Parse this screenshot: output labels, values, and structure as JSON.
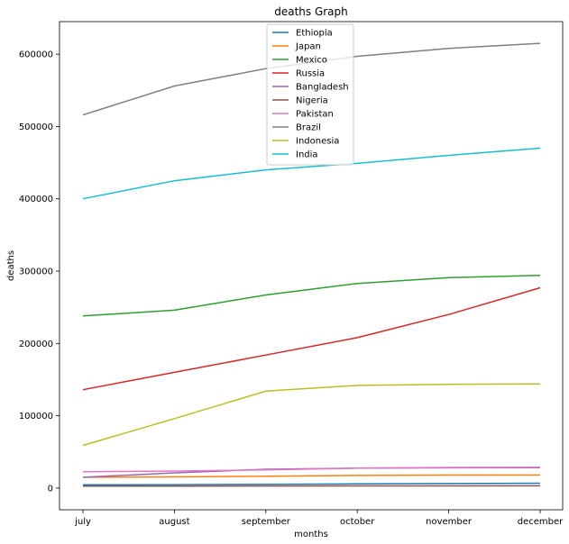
{
  "chart_data": {
    "type": "line",
    "title": "deaths Graph",
    "xlabel": "months",
    "ylabel": "deaths",
    "categories": [
      "july",
      "august",
      "september",
      "october",
      "november",
      "december"
    ],
    "ylim": [
      -30000,
      645000
    ],
    "yticks": [
      0,
      100000,
      200000,
      300000,
      400000,
      500000,
      600000
    ],
    "grid": false,
    "legend_position": "top-center",
    "series": [
      {
        "name": "Ethiopia",
        "color": "#1f77b4",
        "values": [
          4500,
          4800,
          5200,
          5800,
          6300,
          6800
        ]
      },
      {
        "name": "Japan",
        "color": "#ff7f0e",
        "values": [
          15000,
          15500,
          16500,
          17500,
          18000,
          18000
        ]
      },
      {
        "name": "Mexico",
        "color": "#2ca02c",
        "values": [
          238000,
          246000,
          267000,
          283000,
          291000,
          294000
        ]
      },
      {
        "name": "Russia",
        "color": "#d62728",
        "values": [
          136000,
          160000,
          184000,
          208000,
          240000,
          277000
        ]
      },
      {
        "name": "Bangladesh",
        "color": "#9467bd",
        "values": [
          15000,
          21000,
          26000,
          27500,
          28000,
          28200
        ]
      },
      {
        "name": "Nigeria",
        "color": "#8c564b",
        "values": [
          2700,
          2800,
          2900,
          3000,
          3050,
          3100
        ]
      },
      {
        "name": "Pakistan",
        "color": "#e377c2",
        "values": [
          22500,
          23500,
          25000,
          27500,
          28500,
          28800
        ]
      },
      {
        "name": "Brazil",
        "color": "#7f7f7f",
        "values": [
          516000,
          556000,
          580000,
          597000,
          608000,
          615000
        ]
      },
      {
        "name": "Indonesia",
        "color": "#bcbd22",
        "values": [
          59000,
          96000,
          134000,
          142000,
          143500,
          144000
        ]
      },
      {
        "name": "India",
        "color": "#17becf",
        "values": [
          400000,
          425000,
          440000,
          449000,
          460000,
          470000
        ]
      }
    ]
  }
}
